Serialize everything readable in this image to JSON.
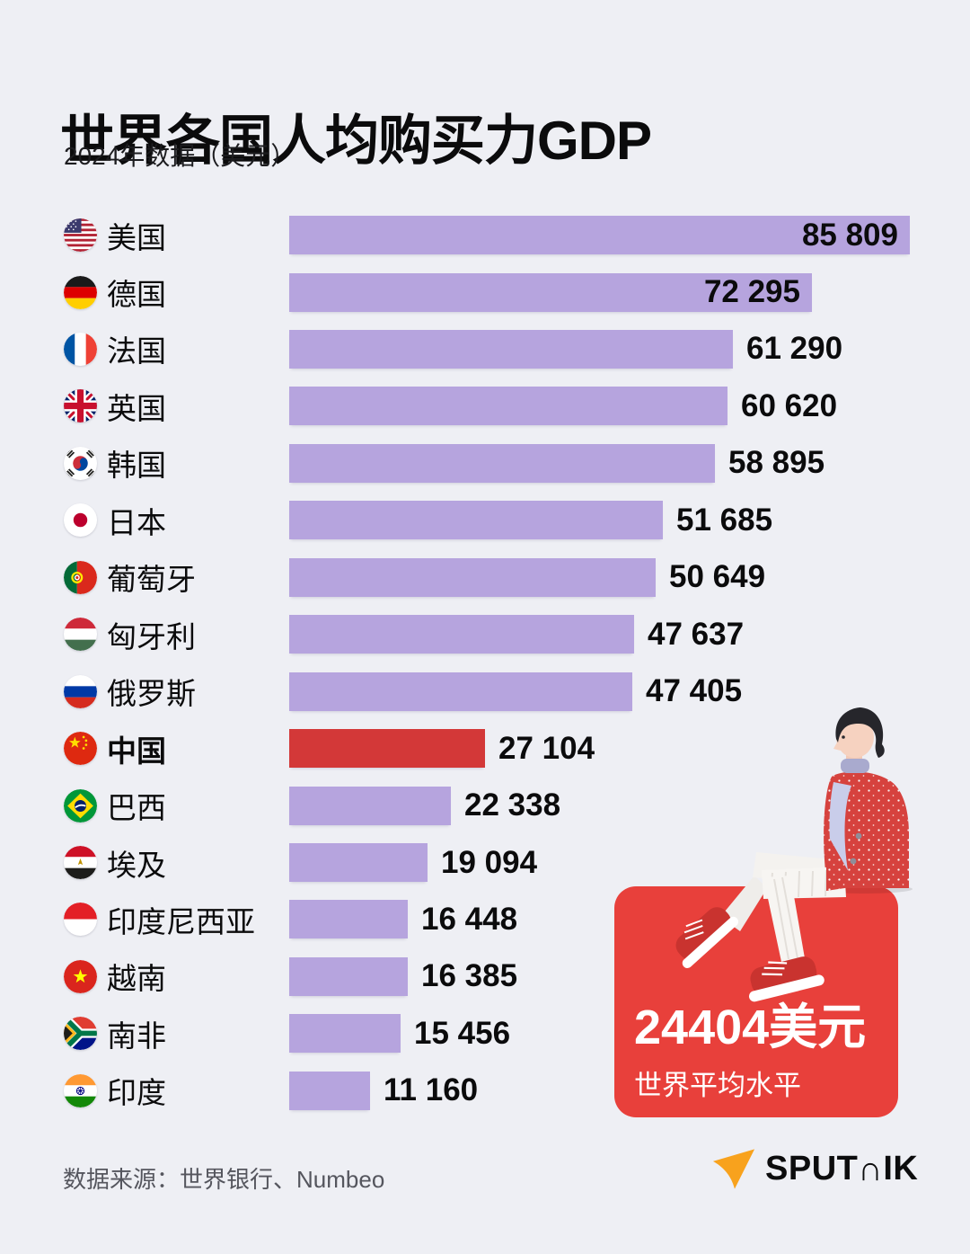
{
  "chart_data": {
    "type": "bar",
    "orientation": "horizontal",
    "title": "世界各国人均购买力GDP",
    "subtitle": "2024年数据（美元）",
    "unit": "美元",
    "xlim": [
      0,
      85809
    ],
    "grid": false,
    "bar_color": "#b6a4de",
    "highlight_color": "#d33838",
    "categories": [
      "美国",
      "德国",
      "法国",
      "英国",
      "韩国",
      "日本",
      "葡萄牙",
      "匈牙利",
      "俄罗斯",
      "中国",
      "巴西",
      "埃及",
      "印度尼西亚",
      "越南",
      "南非",
      "印度"
    ],
    "rows": [
      {
        "flag": "usa",
        "label": "美国",
        "value": 85809,
        "value_text": "85 809",
        "highlight": false,
        "value_inside": true
      },
      {
        "flag": "germany",
        "label": "德国",
        "value": 72295,
        "value_text": "72 295",
        "highlight": false,
        "value_inside": true
      },
      {
        "flag": "france",
        "label": "法国",
        "value": 61290,
        "value_text": "61 290",
        "highlight": false,
        "value_inside": false
      },
      {
        "flag": "uk",
        "label": "英国",
        "value": 60620,
        "value_text": "60 620",
        "highlight": false,
        "value_inside": false
      },
      {
        "flag": "south-korea",
        "label": "韩国",
        "value": 58895,
        "value_text": "58 895",
        "highlight": false,
        "value_inside": false
      },
      {
        "flag": "japan",
        "label": "日本",
        "value": 51685,
        "value_text": "51 685",
        "highlight": false,
        "value_inside": false
      },
      {
        "flag": "portugal",
        "label": "葡萄牙",
        "value": 50649,
        "value_text": "50 649",
        "highlight": false,
        "value_inside": false
      },
      {
        "flag": "hungary",
        "label": "匈牙利",
        "value": 47637,
        "value_text": "47 637",
        "highlight": false,
        "value_inside": false
      },
      {
        "flag": "russia",
        "label": "俄罗斯",
        "value": 47405,
        "value_text": "47 405",
        "highlight": false,
        "value_inside": false
      },
      {
        "flag": "china",
        "label": "中国",
        "value": 27104,
        "value_text": "27 104",
        "highlight": true,
        "value_inside": false
      },
      {
        "flag": "brazil",
        "label": "巴西",
        "value": 22338,
        "value_text": "22 338",
        "highlight": false,
        "value_inside": false
      },
      {
        "flag": "egypt",
        "label": "埃及",
        "value": 19094,
        "value_text": "19 094",
        "highlight": false,
        "value_inside": false
      },
      {
        "flag": "indonesia",
        "label": "印度尼西亚",
        "value": 16448,
        "value_text": "16 448",
        "highlight": false,
        "value_inside": false
      },
      {
        "flag": "vietnam",
        "label": "越南",
        "value": 16385,
        "value_text": "16 385",
        "highlight": false,
        "value_inside": false
      },
      {
        "flag": "south-africa",
        "label": "南非",
        "value": 15456,
        "value_text": "15 456",
        "highlight": false,
        "value_inside": false
      },
      {
        "flag": "india",
        "label": "印度",
        "value": 11160,
        "value_text": "11 160",
        "highlight": false,
        "value_inside": false
      }
    ],
    "annotation": {
      "value": 24404,
      "value_text": "24404美元",
      "label": "世界平均水平",
      "box_color": "#e8403b"
    }
  },
  "footer": {
    "source": "数据来源：世界银行、Numbeo",
    "logo": {
      "brand": "SPUTNIK",
      "text_left": "SPUT",
      "text_n": "∩",
      "text_right": "IK",
      "icon_color": "#f8a21d"
    }
  },
  "colors": {
    "background": "#eeeff4",
    "text": "#0b0b0c",
    "source_text": "#55565e"
  }
}
